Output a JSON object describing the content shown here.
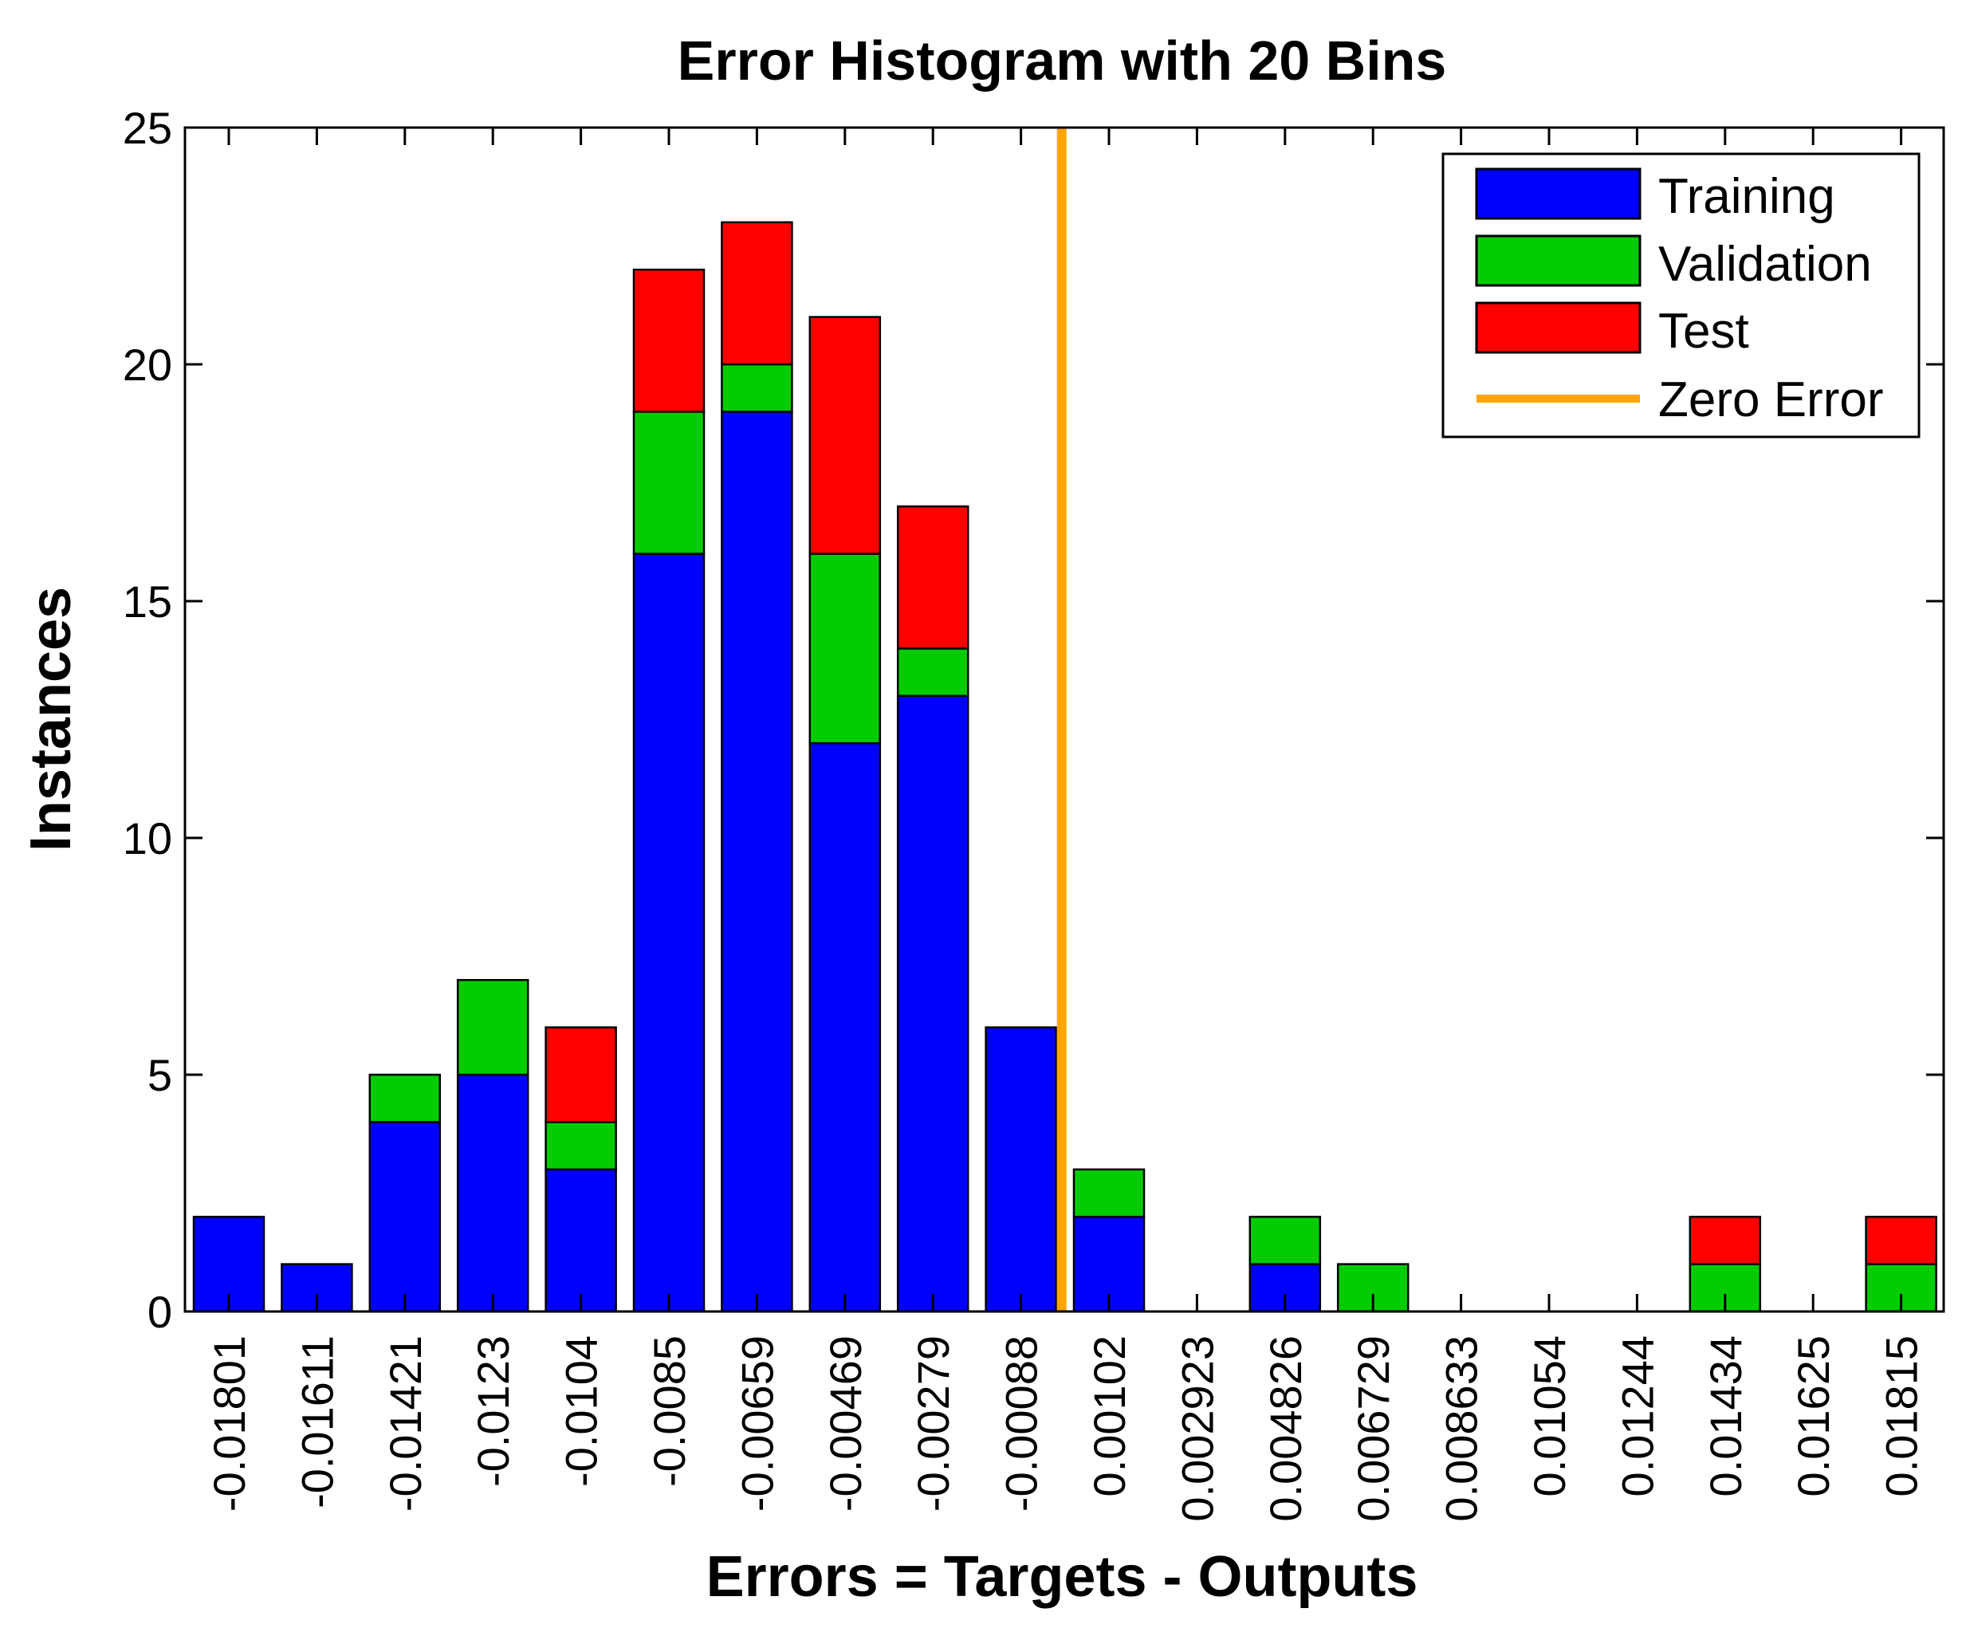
{
  "chart_data": {
    "type": "bar",
    "stacked": true,
    "title": "Error Histogram with 20 Bins",
    "xlabel": "Errors = Targets - Outputs",
    "ylabel": "Instances",
    "ylim": [
      0,
      25
    ],
    "yticks": [
      0,
      5,
      10,
      15,
      20,
      25
    ],
    "grid": false,
    "legend_position": "top-right",
    "categories": [
      "-0.01801",
      "-0.01611",
      "-0.01421",
      "-0.0123",
      "-0.0104",
      "-0.0085",
      "-0.00659",
      "-0.00469",
      "-0.00279",
      "-0.00088",
      "0.00102",
      "0.002923",
      "0.004826",
      "0.006729",
      "0.008633",
      "0.01054",
      "0.01244",
      "0.01434",
      "0.01625",
      "0.01815"
    ],
    "series": [
      {
        "name": "Training",
        "color": "#0000ff",
        "values": [
          2,
          1,
          4,
          5,
          3,
          16,
          19,
          12,
          13,
          6,
          2,
          0,
          1,
          0,
          0,
          0,
          0,
          0,
          0,
          0
        ]
      },
      {
        "name": "Validation",
        "color": "#00cc00",
        "values": [
          0,
          0,
          1,
          2,
          1,
          3,
          1,
          4,
          1,
          0,
          1,
          0,
          1,
          1,
          0,
          0,
          0,
          1,
          0,
          1
        ]
      },
      {
        "name": "Test",
        "color": "#ff0000",
        "values": [
          0,
          0,
          0,
          0,
          2,
          3,
          3,
          5,
          3,
          0,
          0,
          0,
          0,
          0,
          0,
          0,
          0,
          1,
          0,
          1
        ]
      }
    ],
    "reference_line": {
      "name": "Zero Error",
      "color": "#ffa500",
      "x_value": 0
    }
  }
}
